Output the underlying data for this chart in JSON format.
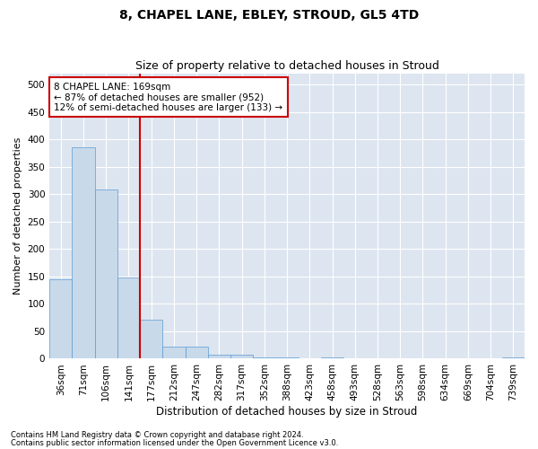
{
  "title1": "8, CHAPEL LANE, EBLEY, STROUD, GL5 4TD",
  "title2": "Size of property relative to detached houses in Stroud",
  "xlabel": "Distribution of detached houses by size in Stroud",
  "ylabel": "Number of detached properties",
  "footnote1": "Contains HM Land Registry data © Crown copyright and database right 2024.",
  "footnote2": "Contains public sector information licensed under the Open Government Licence v3.0.",
  "bar_labels": [
    "36sqm",
    "71sqm",
    "106sqm",
    "141sqm",
    "177sqm",
    "212sqm",
    "247sqm",
    "282sqm",
    "317sqm",
    "352sqm",
    "388sqm",
    "423sqm",
    "458sqm",
    "493sqm",
    "528sqm",
    "563sqm",
    "598sqm",
    "634sqm",
    "669sqm",
    "704sqm",
    "739sqm"
  ],
  "bar_values": [
    145,
    385,
    308,
    148,
    71,
    22,
    22,
    8,
    8,
    3,
    3,
    0,
    3,
    0,
    0,
    0,
    0,
    0,
    0,
    0,
    3
  ],
  "bar_color": "#c8d9ea",
  "bar_edge_color": "#5b9bd5",
  "background_color": "#dde5f0",
  "fig_background_color": "#ffffff",
  "grid_color": "#ffffff",
  "property_line_x": 4,
  "property_line_color": "#cc0000",
  "annotation_box_text": "8 CHAPEL LANE: 169sqm\n← 87% of detached houses are smaller (952)\n12% of semi-detached houses are larger (133) →",
  "annotation_box_color": "#cc0000",
  "ylim": [
    0,
    520
  ],
  "yticks": [
    0,
    50,
    100,
    150,
    200,
    250,
    300,
    350,
    400,
    450,
    500
  ],
  "title1_fontsize": 10,
  "title2_fontsize": 9,
  "xlabel_fontsize": 8.5,
  "ylabel_fontsize": 8,
  "tick_fontsize": 7.5,
  "annotation_fontsize": 7.5,
  "footnote_fontsize": 6
}
